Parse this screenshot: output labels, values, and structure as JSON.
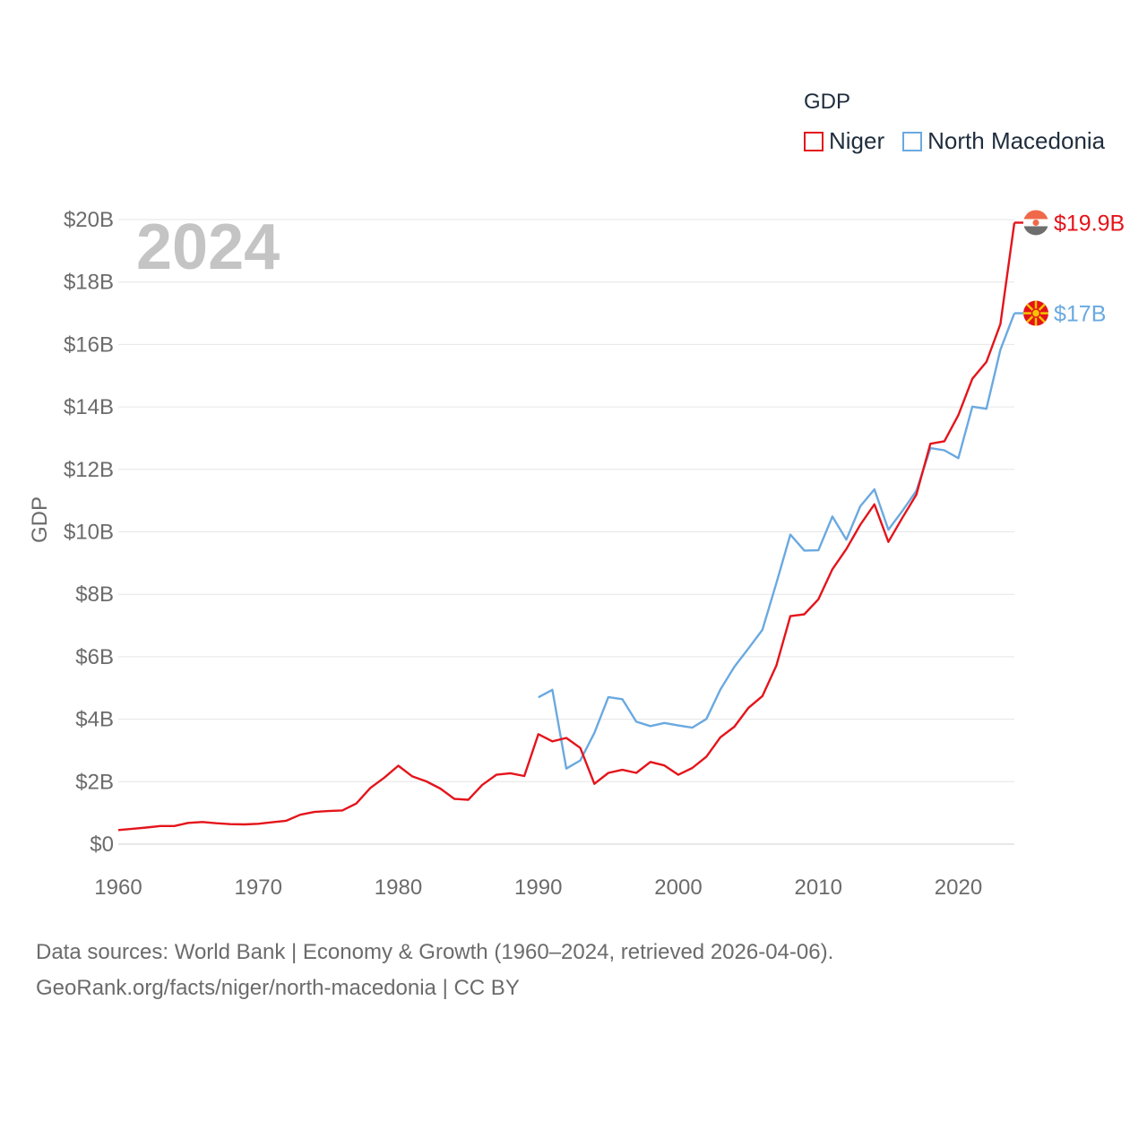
{
  "legend": {
    "title": "GDP",
    "items": [
      {
        "name": "Niger",
        "color": "#e4141b"
      },
      {
        "name": "North Macedonia",
        "color": "#6aa9e0"
      }
    ]
  },
  "footer": {
    "line1": "Data sources: World Bank | Economy & Growth (1960–2024, retrieved 2026-04-06).",
    "line2": "GeoRank.org/facts/niger/north-macedonia | CC BY"
  },
  "chart_data": {
    "type": "line",
    "title": "",
    "year_label": "2024",
    "ylabel": "GDP",
    "xlabel": "",
    "xlim": [
      1960,
      2024
    ],
    "ylim": [
      0,
      20
    ],
    "x_ticks": [
      1960,
      1970,
      1980,
      1990,
      2000,
      2010,
      2020
    ],
    "y_ticks": [
      0,
      2,
      4,
      6,
      8,
      10,
      12,
      14,
      16,
      18,
      20
    ],
    "y_tick_labels": [
      "$0",
      "$2B",
      "$4B",
      "$6B",
      "$8B",
      "$10B",
      "$12B",
      "$14B",
      "$16B",
      "$18B",
      "$20B"
    ],
    "grid": true,
    "series": [
      {
        "name": "Niger",
        "color": "#e4141b",
        "end_label": "$19.9B",
        "x": [
          1960,
          1961,
          1962,
          1963,
          1964,
          1965,
          1966,
          1967,
          1968,
          1969,
          1970,
          1971,
          1972,
          1973,
          1974,
          1975,
          1976,
          1977,
          1978,
          1979,
          1980,
          1981,
          1982,
          1983,
          1984,
          1985,
          1986,
          1987,
          1988,
          1989,
          1990,
          1991,
          1992,
          1993,
          1994,
          1995,
          1996,
          1997,
          1998,
          1999,
          2000,
          2001,
          2002,
          2003,
          2004,
          2005,
          2006,
          2007,
          2008,
          2009,
          2010,
          2011,
          2012,
          2013,
          2014,
          2015,
          2016,
          2017,
          2018,
          2019,
          2020,
          2021,
          2022,
          2023,
          2024
        ],
        "values": [
          0.45,
          0.49,
          0.53,
          0.58,
          0.58,
          0.68,
          0.71,
          0.67,
          0.64,
          0.63,
          0.65,
          0.7,
          0.75,
          0.94,
          1.03,
          1.06,
          1.08,
          1.3,
          1.8,
          2.13,
          2.51,
          2.17,
          2.01,
          1.78,
          1.45,
          1.42,
          1.9,
          2.22,
          2.27,
          2.18,
          3.52,
          3.29,
          3.4,
          3.08,
          1.93,
          2.28,
          2.38,
          2.28,
          2.63,
          2.52,
          2.22,
          2.44,
          2.8,
          3.42,
          3.76,
          4.36,
          4.74,
          5.72,
          7.3,
          7.36,
          7.84,
          8.8,
          9.45,
          10.23,
          10.88,
          9.68,
          10.45,
          11.19,
          12.82,
          12.9,
          13.74,
          14.9,
          15.44,
          16.65,
          19.9
        ]
      },
      {
        "name": "North Macedonia",
        "color": "#6aa9e0",
        "end_label": "$17B",
        "x": [
          1990,
          1991,
          1992,
          1993,
          1994,
          1995,
          1996,
          1997,
          1998,
          1999,
          2000,
          2001,
          2002,
          2003,
          2004,
          2005,
          2006,
          2007,
          2008,
          2009,
          2010,
          2011,
          2012,
          2013,
          2014,
          2015,
          2016,
          2017,
          2018,
          2019,
          2020,
          2021,
          2022,
          2023,
          2024
        ],
        "values": [
          4.7,
          4.94,
          2.42,
          2.68,
          3.56,
          4.71,
          4.64,
          3.92,
          3.78,
          3.88,
          3.8,
          3.73,
          4.01,
          4.95,
          5.68,
          6.26,
          6.86,
          8.36,
          9.91,
          9.4,
          9.41,
          10.49,
          9.75,
          10.82,
          11.36,
          10.07,
          10.67,
          11.31,
          12.68,
          12.61,
          12.36,
          14.01,
          13.94,
          15.83,
          17.0
        ]
      }
    ]
  }
}
